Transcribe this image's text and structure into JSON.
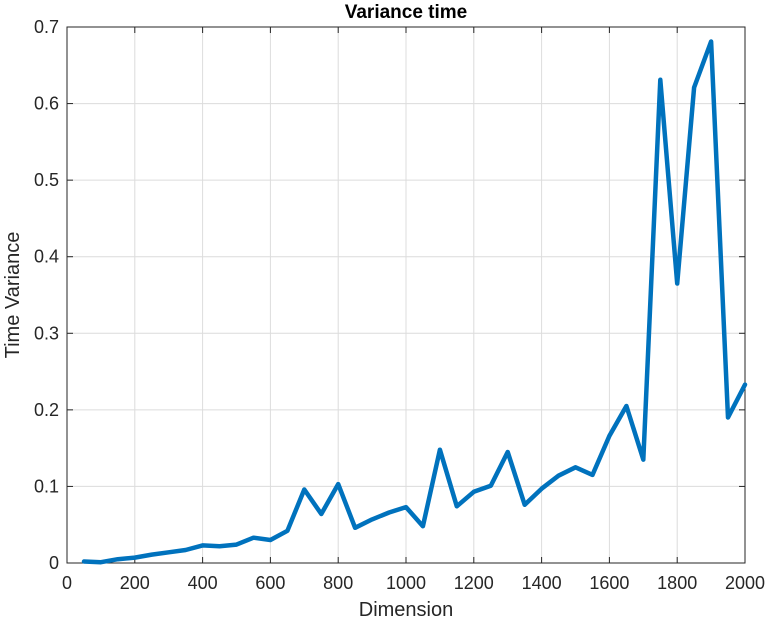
{
  "chart_data": {
    "type": "line",
    "title": "Variance time",
    "xlabel": "Dimension",
    "ylabel": "Time Variance",
    "xlim": [
      0,
      2000
    ],
    "ylim": [
      0,
      0.7
    ],
    "xticks": [
      "0",
      "200",
      "400",
      "600",
      "800",
      "1000",
      "1200",
      "1400",
      "1600",
      "1800",
      "2000"
    ],
    "yticks": [
      "0",
      "0.1",
      "0.2",
      "0.3",
      "0.4",
      "0.5",
      "0.6",
      "0.7"
    ],
    "grid": true,
    "color": "#0072BD",
    "x": [
      50,
      100,
      150,
      200,
      250,
      300,
      350,
      400,
      450,
      500,
      550,
      600,
      650,
      700,
      750,
      800,
      850,
      900,
      950,
      1000,
      1050,
      1100,
      1150,
      1200,
      1250,
      1300,
      1350,
      1400,
      1450,
      1500,
      1550,
      1600,
      1650,
      1700,
      1750,
      1800,
      1850,
      1900,
      1950,
      2000
    ],
    "y": [
      0.002,
      0.001,
      0.005,
      0.007,
      0.011,
      0.014,
      0.017,
      0.023,
      0.022,
      0.024,
      0.033,
      0.03,
      0.042,
      0.096,
      0.064,
      0.103,
      0.046,
      0.057,
      0.066,
      0.073,
      0.048,
      0.148,
      0.074,
      0.093,
      0.101,
      0.145,
      0.076,
      0.097,
      0.114,
      0.125,
      0.115,
      0.166,
      0.205,
      0.135,
      0.631,
      0.365,
      0.621,
      0.681,
      0.19,
      0.233
    ]
  }
}
